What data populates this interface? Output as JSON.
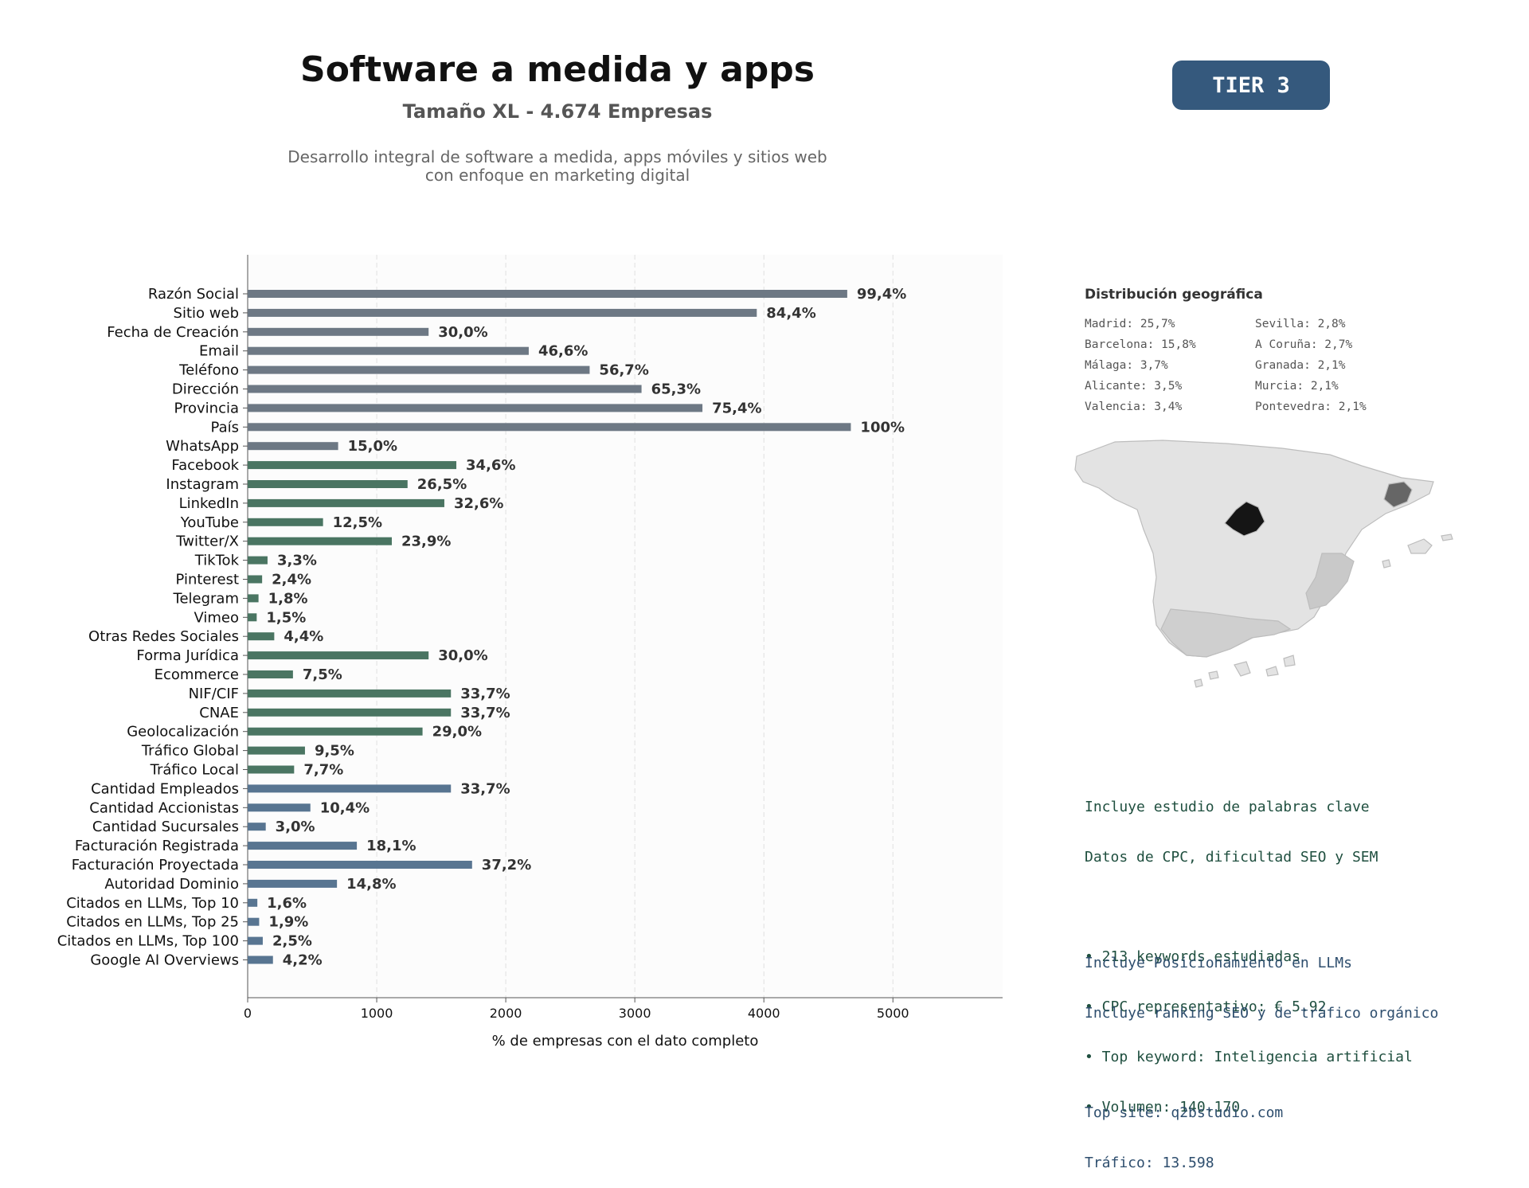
{
  "header": {
    "title": "Software a medida y apps",
    "subtitle": "Tamaño XL - 4.674 Empresas",
    "description": "Desarrollo integral de software a medida, apps móviles y sitios web\ncon enfoque en marketing digital",
    "tier_badge": "TIER 3"
  },
  "chart_data": {
    "type": "bar",
    "orientation": "horizontal",
    "xlabel": "% de empresas con el dato completo",
    "xlim": [
      0,
      5850
    ],
    "xticks": [
      0,
      1000,
      2000,
      3000,
      4000,
      5000
    ],
    "grid": "vertical dashed",
    "colors": {
      "basic": "#6d7884",
      "social": "#4a7562",
      "business": "#587591"
    },
    "categories": [
      "Razón Social",
      "Sitio web",
      "Fecha de Creación",
      "Email",
      "Teléfono",
      "Dirección",
      "Provincia",
      "País",
      "WhatsApp",
      "Facebook",
      "Instagram",
      "LinkedIn",
      "YouTube",
      "Twitter/X",
      "TikTok",
      "Pinterest",
      "Telegram",
      "Vimeo",
      "Otras Redes Sociales",
      "Forma Jurídica",
      "Ecommerce",
      "NIF/CIF",
      "CNAE",
      "Geolocalización",
      "Tráfico Global",
      "Tráfico Local",
      "Cantidad Empleados",
      "Cantidad Accionistas",
      "Cantidad Sucursales",
      "Facturación Registrada",
      "Facturación Proyectada",
      "Autoridad Dominio",
      "Citados en LLMs, Top 10",
      "Citados en LLMs, Top 25",
      "Citados en LLMs, Top 100",
      "Google AI Overviews"
    ],
    "values": [
      4646,
      3945,
      1402,
      2178,
      2650,
      3052,
      3524,
      4674,
      701,
      1617,
      1239,
      1524,
      584,
      1117,
      154,
      112,
      84,
      70,
      206,
      1402,
      351,
      1575,
      1575,
      1355,
      444,
      360,
      1575,
      486,
      140,
      846,
      1739,
      692,
      75,
      89,
      117,
      196
    ],
    "labels": [
      "99,4%",
      "84,4%",
      "30,0%",
      "46,6%",
      "56,7%",
      "65,3%",
      "75,4%",
      "100%",
      "15,0%",
      "34,6%",
      "26,5%",
      "32,6%",
      "12,5%",
      "23,9%",
      "3,3%",
      "2,4%",
      "1,8%",
      "1,5%",
      "4,4%",
      "30,0%",
      "7,5%",
      "33,7%",
      "33,7%",
      "29,0%",
      "9,5%",
      "7,7%",
      "33,7%",
      "10,4%",
      "3,0%",
      "18,1%",
      "37,2%",
      "14,8%",
      "1,6%",
      "1,9%",
      "2,5%",
      "4,2%"
    ],
    "groups": [
      "basic",
      "basic",
      "basic",
      "basic",
      "basic",
      "basic",
      "basic",
      "basic",
      "basic",
      "social",
      "social",
      "social",
      "social",
      "social",
      "social",
      "social",
      "social",
      "social",
      "social",
      "social",
      "social",
      "social",
      "social",
      "social",
      "social",
      "social",
      "business",
      "business",
      "business",
      "business",
      "business",
      "business",
      "business",
      "business",
      "business",
      "business"
    ]
  },
  "geo": {
    "title": "Distribución geográfica",
    "items": [
      "Madrid: 25,7%",
      "Sevilla: 2,8%",
      "Barcelona: 15,8%",
      "A Coruña: 2,7%",
      "Málaga: 3,7%",
      "Granada: 2,1%",
      "Alicante: 3,5%",
      "Murcia: 2,1%",
      "Valencia: 3,4%",
      "Pontevedra: 2,1%"
    ],
    "map_colors": {
      "base": "#e3e3e3",
      "border": "#bdbdbd",
      "madrid": "#151515",
      "barcelona": "#666666",
      "valencia": "#c9c9c9",
      "andalucia": "#cfcfcf"
    }
  },
  "keywords": {
    "line1": "Incluye estudio de palabras clave",
    "line2": "Datos de CPC, dificultad SEO y SEM",
    "bullets": [
      "• 213 keywords estudiadas",
      "• CPC representativo: € 5.92",
      "• Top keyword: Inteligencia artificial",
      "• Volumen: 140.170"
    ]
  },
  "llm": {
    "line1": "Incluye Posicionamiento en LLMs",
    "line2": "Incluye ranking SEO y de tráfico orgánico",
    "top_site": "Top site: q2bstudio.com",
    "traffic": "Tráfico: 13.598"
  }
}
